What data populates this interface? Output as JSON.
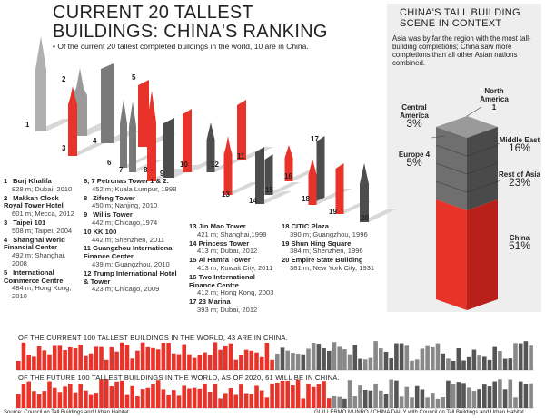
{
  "title": "CURRENT 20 TALLEST BUILDINGS: CHINA'S RANKING",
  "subtitle": "Of the current 20 tallest completed buildings in the world, 10 are in China.",
  "skyline_labels": [
    "1",
    "2",
    "3",
    "4",
    "5",
    "6",
    "7",
    "8",
    "9",
    "10",
    "11",
    "12",
    "13",
    "14",
    "15",
    "16",
    "17",
    "18",
    "19",
    "20"
  ],
  "buildings": [
    {
      "rank": "1",
      "name": "Burj Khalifa",
      "detail": "828 m; Dubai, 2010"
    },
    {
      "rank": "2",
      "name": "Makkah Clock Royal Tower Hotel",
      "detail": "601 m; Mecca, 2012"
    },
    {
      "rank": "3",
      "name": "Taipei 101",
      "detail": "508 m; Taipei, 2004"
    },
    {
      "rank": "4",
      "name": "Shanghai World Financial Center",
      "detail": "492 m; Shanghai, 2008"
    },
    {
      "rank": "5",
      "name": "International Commerce Centre",
      "detail": "484 m; Hong Kong, 2010"
    },
    {
      "rank": "6, 7",
      "name": "Petronas Tower 1 & 2:",
      "detail": "452 m; Kuala Lumpur, 1998"
    },
    {
      "rank": "8",
      "name": "Zifeng Tower",
      "detail": "450 m; Nanjing, 2010"
    },
    {
      "rank": "9",
      "name": "Willis Tower",
      "detail": "442 m; Chicago,1974"
    },
    {
      "rank": "10",
      "name": "KK 100",
      "detail": "442 m; Shenzhen, 2011"
    },
    {
      "rank": "11",
      "name": "Guangzhou International Finance Center",
      "detail": "439 m; Guangzhou, 2010"
    },
    {
      "rank": "12",
      "name": "Trump International Hotel & Tower",
      "detail": "423 m; Chicago, 2009"
    },
    {
      "rank": "13",
      "name": "Jin Mao Tower",
      "detail": "421 m; Shanghai,1999"
    },
    {
      "rank": "14",
      "name": "Princess Tower",
      "detail": "413 m; Dubai, 2012"
    },
    {
      "rank": "15",
      "name": "Al Hamra Tower",
      "detail": "413 m; Kuwait City, 2011"
    },
    {
      "rank": "16",
      "name": "Two International Finance Centre",
      "detail": "412 m; Hong Kong, 2003"
    },
    {
      "rank": "17",
      "name": "23 Marina",
      "detail": "393 m; Dubai, 2012"
    },
    {
      "rank": "18",
      "name": "CITIC Plaza",
      "detail": "390 m; Guangzhou, 1996"
    },
    {
      "rank": "19",
      "name": "Shun Hing Square",
      "detail": "384 m; Shenzhen, 1996"
    },
    {
      "rank": "20",
      "name": "Empire State Building",
      "detail": "381 m; New York City, 1931"
    }
  ],
  "context": {
    "title": "CHINA'S TALL BUILDING SCENE IN CONTEXT",
    "text": "Asia was by far the region with the most tall-building completions; China saw more completions than all other Asian nations combined.",
    "regions": [
      {
        "name": "North America",
        "share": "1"
      },
      {
        "name": "Central America",
        "share": "3%"
      },
      {
        "name": "Europe 4",
        "share": "5%"
      },
      {
        "name": "Middle East",
        "share": "16%"
      },
      {
        "name": "Rest of Asia",
        "share": "23%"
      },
      {
        "name": "China",
        "share": "51%"
      }
    ]
  },
  "strips": [
    "OF THE CURRENT 100 TALLEST BUILDINGS IN THE WORLD, 43 ARE IN CHINA.",
    "OF THE FUTURE 100 TALLEST BUILDINGS IN THE WORLD, AS OF 2020, 61 WILL BE IN CHINA."
  ],
  "source": "Source: Council on Tall Buildings and Urban Habitat",
  "credit": "GUILLERMO MUNRO / CHINA DAILY with Council on Tall Buildings and Urban Habitat"
}
